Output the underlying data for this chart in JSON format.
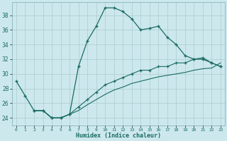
{
  "title": "",
  "xlabel": "Humidex (Indice chaleur)",
  "background_color": "#cce8ed",
  "grid_color": "#b0d4da",
  "line_color": "#1a6b60",
  "xlim": [
    -0.5,
    23.5
  ],
  "ylim": [
    23.0,
    39.8
  ],
  "xtick_labels": [
    "0",
    "1",
    "2",
    "3",
    "4",
    "5",
    "6",
    "7",
    "8",
    "9",
    "10",
    "11",
    "12",
    "13",
    "14",
    "15",
    "16",
    "17",
    "18",
    "19",
    "20",
    "21",
    "22",
    "23"
  ],
  "yticks": [
    24,
    26,
    28,
    30,
    32,
    34,
    36,
    38
  ],
  "curve1_x": [
    0,
    1,
    2,
    3,
    4,
    5,
    6,
    7,
    8,
    9,
    10,
    11,
    12,
    13,
    14,
    15,
    16,
    17,
    18,
    19,
    20,
    21,
    22,
    23
  ],
  "curve1_y": [
    29.0,
    27.0,
    25.0,
    25.0,
    24.0,
    24.0,
    24.5,
    31.0,
    34.5,
    36.5,
    39.0,
    39.0,
    38.5,
    37.5,
    36.0,
    36.2,
    36.5,
    35.0,
    34.0,
    32.5,
    32.0,
    32.0,
    31.5,
    31.0
  ],
  "curve2_x": [
    2,
    3,
    4,
    5,
    6,
    7,
    8,
    9,
    10,
    11,
    12,
    13,
    14,
    15,
    16,
    17,
    18,
    19,
    20,
    21,
    22,
    23
  ],
  "curve2_y": [
    25.0,
    25.0,
    24.0,
    24.0,
    24.5,
    25.5,
    26.5,
    27.5,
    28.5,
    29.0,
    29.5,
    30.0,
    30.5,
    30.5,
    31.0,
    31.0,
    31.5,
    31.5,
    32.0,
    32.2,
    31.5,
    31.0
  ],
  "curve3_x": [
    2,
    3,
    4,
    5,
    6,
    7,
    8,
    9,
    10,
    11,
    12,
    13,
    14,
    15,
    16,
    17,
    18,
    19,
    20,
    21,
    22,
    23
  ],
  "curve3_y": [
    25.0,
    25.0,
    24.0,
    24.0,
    24.5,
    25.0,
    25.8,
    26.5,
    27.2,
    27.8,
    28.2,
    28.7,
    29.0,
    29.3,
    29.6,
    29.8,
    30.0,
    30.2,
    30.5,
    30.7,
    30.8,
    31.5
  ]
}
